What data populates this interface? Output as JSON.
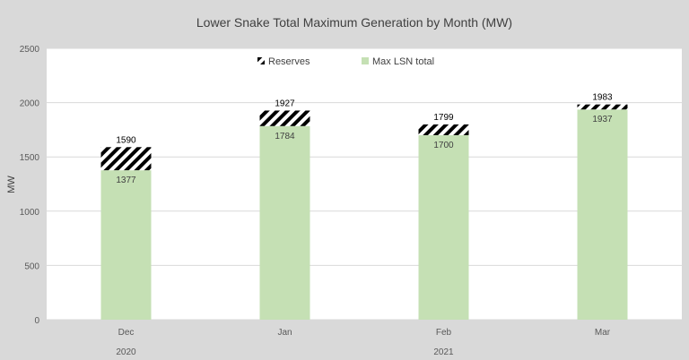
{
  "chart_data": {
    "type": "bar",
    "stacked": true,
    "title": "Lower Snake Total Maximum Generation by Month (MW)",
    "ylabel": "MW",
    "xlabel": "",
    "ylim": [
      0,
      2500
    ],
    "yticks": [
      0,
      500,
      1000,
      1500,
      2000,
      2500
    ],
    "grid": true,
    "legend_position": "top",
    "categories": [
      "Dec",
      "Jan",
      "Feb",
      "Mar"
    ],
    "year_groups": [
      {
        "label": "2020",
        "categories": [
          "Dec"
        ]
      },
      {
        "label": "2021",
        "categories": [
          "Jan",
          "Feb",
          "Mar"
        ]
      }
    ],
    "series": [
      {
        "name": "Max LSN total",
        "values": [
          1377,
          1784,
          1700,
          1937
        ],
        "labels": [
          "1377",
          "1784",
          "1700",
          "1937"
        ],
        "color": "#c5e0b4"
      },
      {
        "name": "Reserves",
        "values": [
          213,
          143,
          99,
          46
        ],
        "totals": [
          1590,
          1927,
          1799,
          1983
        ],
        "labels": [
          "1590",
          "1927",
          "1799",
          "1983"
        ],
        "pattern": "diagonal-hatch",
        "color": "#000000"
      }
    ]
  }
}
